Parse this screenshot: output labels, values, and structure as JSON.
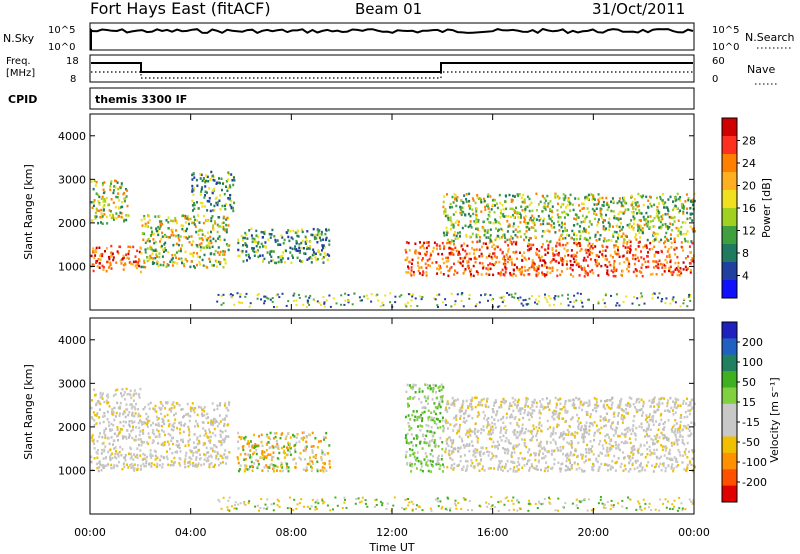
{
  "header": {
    "station": "Fort Hays East (fitACF)",
    "beam": "Beam 01",
    "date": "31/Oct/2011"
  },
  "strip": {
    "nsky_label": "N.Sky",
    "nsky_ticks": [
      "10^5",
      "10^0"
    ],
    "nsearch_label": "N.Search",
    "nsearch_ticks": [
      "10^5",
      "10^0"
    ],
    "freq_label_1": "Freq.",
    "freq_label_2": "[MHz]",
    "freq_ticks": [
      "18",
      "8"
    ],
    "nave_label": "Nave",
    "nave_ticks": [
      "60",
      "0"
    ],
    "cpid_label": "CPID",
    "cpid_value": "themis 3300 IF"
  },
  "chart_data": [
    {
      "type": "heatmap",
      "name": "power",
      "ylabel": "Slant Range [km]",
      "yticks": [
        "1000",
        "2000",
        "3000",
        "4000"
      ],
      "ylim": [
        0,
        4500
      ],
      "colorbar_label": "Power [dB]",
      "colorbar_ticks": [
        "28",
        "24",
        "20",
        "16",
        "12",
        "8",
        "4"
      ],
      "colorbar_colors": [
        "#d00000",
        "#ff3020",
        "#ff8000",
        "#ffb020",
        "#f0e020",
        "#a0d020",
        "#40a040",
        "#207a60",
        "#2040a0",
        "#1010ff"
      ],
      "xlim": [
        0,
        24
      ],
      "echo_regions": [
        {
          "t0": 0.0,
          "t1": 2.0,
          "r0": 900,
          "r1": 1500,
          "level": "high"
        },
        {
          "t0": 0.0,
          "t1": 1.5,
          "r0": 2000,
          "r1": 3000,
          "level": "mid"
        },
        {
          "t0": 2.0,
          "t1": 5.5,
          "r0": 1000,
          "r1": 2200,
          "level": "mid"
        },
        {
          "t0": 4.0,
          "t1": 5.7,
          "r0": 2300,
          "r1": 3200,
          "level": "low"
        },
        {
          "t0": 5.8,
          "t1": 9.5,
          "r0": 1100,
          "r1": 1900,
          "level": "low"
        },
        {
          "t0": 12.5,
          "t1": 24.0,
          "r0": 800,
          "r1": 1600,
          "level": "high"
        },
        {
          "t0": 14.0,
          "t1": 24.0,
          "r0": 1600,
          "r1": 2700,
          "level": "mid"
        }
      ]
    },
    {
      "type": "heatmap",
      "name": "velocity",
      "ylabel": "Slant Range [km]",
      "yticks": [
        "1000",
        "2000",
        "3000",
        "4000"
      ],
      "ylim": [
        0,
        4500
      ],
      "colorbar_label": "Velocity [m s⁻¹]",
      "colorbar_ticks": [
        "200",
        "100",
        "50",
        "15",
        "-15",
        "-50",
        "-100",
        "-200"
      ],
      "colorbar_colors": [
        "#2020c0",
        "#2060c0",
        "#208060",
        "#40b020",
        "#80d040",
        "#c8c8c8",
        "#c8c8c8",
        "#f0c000",
        "#ff9000",
        "#ff5000",
        "#e00000"
      ],
      "xlim": [
        0,
        24
      ],
      "echo_regions": [
        {
          "t0": 0.0,
          "t1": 2.0,
          "r0": 1000,
          "r1": 2900,
          "level": "gray"
        },
        {
          "t0": 2.0,
          "t1": 5.5,
          "r0": 1100,
          "r1": 2600,
          "level": "gray"
        },
        {
          "t0": 5.8,
          "t1": 9.5,
          "r0": 1000,
          "r1": 1900,
          "level": "orange"
        },
        {
          "t0": 12.5,
          "t1": 14.0,
          "r0": 1000,
          "r1": 3000,
          "level": "green"
        },
        {
          "t0": 14.0,
          "t1": 24.0,
          "r0": 1000,
          "r1": 2700,
          "level": "gray"
        }
      ]
    }
  ],
  "xaxis": {
    "ticks": [
      "00:00",
      "04:00",
      "08:00",
      "12:00",
      "16:00",
      "20:00",
      "00:00"
    ],
    "label": "Time UT"
  }
}
